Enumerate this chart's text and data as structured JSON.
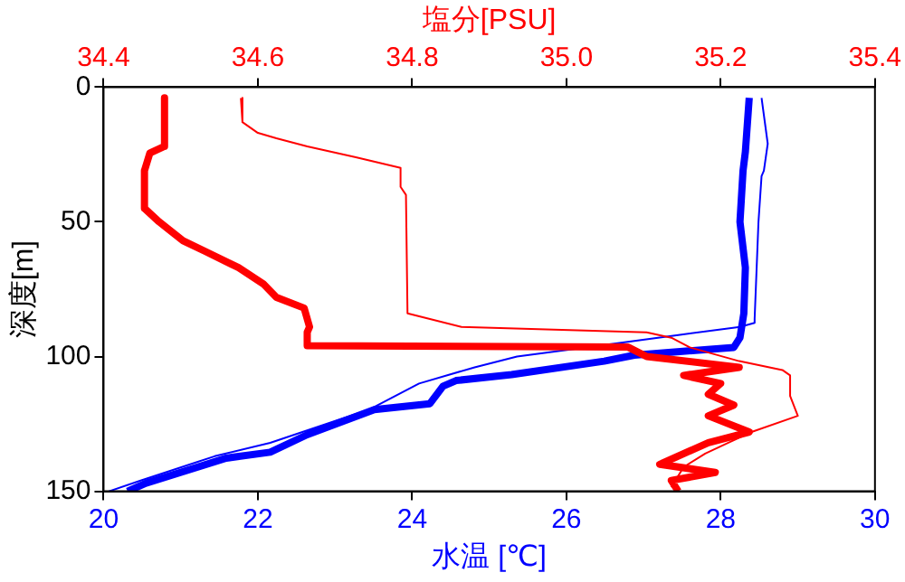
{
  "chart_data": {
    "type": "line",
    "x2label": "塩分[PSU]",
    "xlabel": "水温 [℃]",
    "ylabel": "深度[m]",
    "xlim": [
      20,
      30
    ],
    "xticks": [
      20,
      22,
      24,
      26,
      28,
      30
    ],
    "x2lim": [
      34.4,
      35.4
    ],
    "x2ticks": [
      34.4,
      34.6,
      34.8,
      {
        "value": 35,
        "label": "35.0"
      },
      35.2,
      35.4
    ],
    "ylim": [
      150,
      0
    ],
    "yticks": [
      0,
      50,
      100,
      150
    ],
    "grid": false,
    "legend": false,
    "marker": "none",
    "line_style": "solid",
    "series": [
      {
        "color": "#ff0000",
        "axis": "x2",
        "x": [
          34.479,
          34.479,
          34.46,
          34.453,
          34.453,
          34.472,
          34.503,
          34.532,
          34.575,
          34.607,
          34.624,
          34.66,
          34.667,
          34.664,
          34.664,
          35.08,
          35.104,
          35.224,
          35.152,
          35.2,
          35.184,
          35.217,
          35.184,
          35.237,
          35.184,
          35.121,
          35.193,
          35.136,
          35.145
        ],
        "values": [
          4,
          22,
          24.5,
          31,
          45,
          50,
          57,
          61,
          67,
          73,
          78,
          82,
          89,
          91,
          96,
          96.5,
          100,
          104,
          107,
          110,
          114,
          118,
          122,
          128,
          132,
          140,
          143,
          146,
          150
        ]
      },
      {
        "color": "#ff0000",
        "axis": "x2",
        "x": [
          34.578,
          34.58,
          34.6,
          34.624,
          34.664,
          34.727,
          34.785,
          34.785,
          34.792,
          34.794,
          34.864,
          35.104,
          35.136,
          35.16,
          35.224,
          35.28,
          35.29,
          35.29,
          35.3,
          35.24,
          35.21,
          35.18,
          35.152,
          35.136
        ],
        "values": [
          4,
          13,
          17,
          19,
          22,
          26,
          30,
          37,
          40,
          84,
          89,
          91,
          93,
          96.6,
          101.7,
          105,
          107,
          114.6,
          122,
          128,
          132,
          136,
          141,
          148.5
        ]
      },
      {
        "color": "#0000ff",
        "x": [
          28.37,
          28.32,
          28.29,
          28.25,
          28.32,
          28.3,
          28.25,
          28.17,
          26.88,
          26.49,
          25.29,
          24.57,
          24.4,
          24.23,
          23.51,
          22.64,
          22.16,
          21.59,
          20.55,
          20.31
        ],
        "values": [
          4,
          24,
          31,
          50,
          67,
          84,
          93,
          96.6,
          99.5,
          101.7,
          106.7,
          108.9,
          111,
          117.5,
          119.7,
          129,
          135.5,
          137.7,
          147,
          150
        ]
      },
      {
        "color": "#0000ff",
        "x": [
          28.53,
          28.61,
          28.56,
          28.53,
          28.49,
          28.44,
          28.44,
          28.25,
          27.45,
          26.25,
          25.36,
          24.81,
          24.09,
          23.44,
          22.16,
          21.44,
          20.48,
          20.07
        ],
        "values": [
          4,
          21,
          31,
          33,
          50,
          86,
          87.5,
          89,
          92,
          96.6,
          100,
          104,
          110,
          119.7,
          132,
          137,
          146,
          150
        ]
      }
    ]
  }
}
